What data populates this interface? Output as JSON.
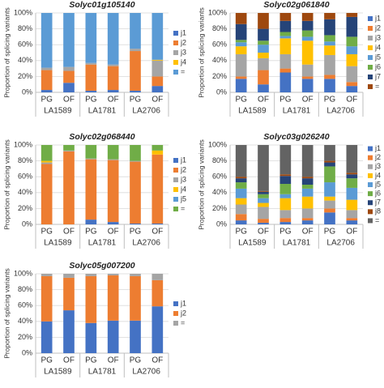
{
  "chart_data": [
    {
      "type": "stacked_bar",
      "title": "Solyc01g105140",
      "y_label": "Proportion of splicing variants",
      "categories": [
        "PG",
        "OF",
        "PG",
        "OF",
        "PG",
        "OF"
      ],
      "groups": [
        "LA1589",
        "LA1781",
        "LA2706"
      ],
      "ylim": [
        0,
        100
      ],
      "yticks": [
        {
          "value": 0,
          "label": "0%"
        },
        {
          "value": 20,
          "label": "20%"
        },
        {
          "value": 40,
          "label": "40%"
        },
        {
          "value": 60,
          "label": "60%"
        },
        {
          "value": 80,
          "label": "80%"
        },
        {
          "value": 100,
          "label": "100%"
        }
      ],
      "grid": true,
      "legend": "right",
      "series": [
        {
          "name": "j1",
          "color": "#4472c4",
          "values": [
            3,
            12,
            2,
            3,
            2,
            8
          ]
        },
        {
          "name": "j2",
          "color": "#ed7d31",
          "values": [
            25,
            15,
            33,
            30,
            50,
            12
          ]
        },
        {
          "name": "j3",
          "color": "#a5a5a5",
          "values": [
            3,
            5,
            2,
            2,
            3,
            20
          ]
        },
        {
          "name": "j4",
          "color": "#ffc000",
          "values": [
            0,
            0,
            0,
            0,
            0,
            1
          ]
        },
        {
          "name": "=",
          "color": "#5b9bd5",
          "values": [
            69,
            68,
            63,
            65,
            45,
            59
          ]
        }
      ]
    },
    {
      "type": "stacked_bar",
      "title": "Solyc02g061840",
      "y_label": "Proportion of splicing variants",
      "categories": [
        "PG",
        "OF",
        "PG",
        "OF",
        "PG",
        "OF"
      ],
      "groups": [
        "LA1589",
        "LA1781",
        "LA2706"
      ],
      "ylim": [
        0,
        100
      ],
      "yticks": [
        {
          "value": 0,
          "label": "0%"
        },
        {
          "value": 20,
          "label": "20%"
        },
        {
          "value": 40,
          "label": "40%"
        },
        {
          "value": 60,
          "label": "60%"
        },
        {
          "value": 80,
          "label": "80%"
        },
        {
          "value": 100,
          "label": "100%"
        }
      ],
      "grid": true,
      "legend": "right",
      "series": [
        {
          "name": "j1",
          "color": "#4472c4",
          "values": [
            17,
            10,
            25,
            17,
            17,
            8
          ]
        },
        {
          "name": "j2",
          "color": "#ed7d31",
          "values": [
            3,
            18,
            5,
            3,
            5,
            5
          ]
        },
        {
          "name": "j3",
          "color": "#a5a5a5",
          "values": [
            28,
            15,
            18,
            15,
            25,
            20
          ]
        },
        {
          "name": "j4",
          "color": "#ffc000",
          "values": [
            10,
            7,
            20,
            30,
            12,
            15
          ]
        },
        {
          "name": "j5",
          "color": "#5b9bd5",
          "values": [
            5,
            10,
            3,
            5,
            5,
            10
          ]
        },
        {
          "name": "j6",
          "color": "#70ad47",
          "values": [
            3,
            5,
            5,
            8,
            8,
            12
          ]
        },
        {
          "name": "j7",
          "color": "#264478",
          "values": [
            20,
            15,
            14,
            12,
            20,
            25
          ]
        },
        {
          "name": "=",
          "color": "#9e480e",
          "values": [
            14,
            20,
            10,
            10,
            8,
            5
          ]
        }
      ]
    },
    {
      "type": "stacked_bar",
      "title": "Solyc02g068440",
      "y_label": "Proportion of splicing variants",
      "categories": [
        "PG",
        "OF",
        "PG",
        "OF",
        "PG",
        "OF"
      ],
      "groups": [
        "LA1589",
        "LA1781",
        "LA2706"
      ],
      "ylim": [
        0,
        100
      ],
      "yticks": [
        {
          "value": 0,
          "label": "0%"
        },
        {
          "value": 20,
          "label": "20%"
        },
        {
          "value": 40,
          "label": "40%"
        },
        {
          "value": 60,
          "label": "60%"
        },
        {
          "value": 80,
          "label": "80%"
        },
        {
          "value": 100,
          "label": "100%"
        }
      ],
      "grid": true,
      "legend": "right",
      "series": [
        {
          "name": "j1",
          "color": "#4472c4",
          "values": [
            0,
            0,
            6,
            3,
            1,
            1
          ]
        },
        {
          "name": "j2",
          "color": "#ed7d31",
          "values": [
            76,
            92,
            76,
            78,
            78,
            87
          ]
        },
        {
          "name": "j3",
          "color": "#a5a5a5",
          "values": [
            2,
            1,
            1,
            1,
            1,
            0
          ]
        },
        {
          "name": "j4",
          "color": "#ffc000",
          "values": [
            2,
            0,
            0,
            0,
            0,
            5
          ]
        },
        {
          "name": "j5",
          "color": "#5b9bd5",
          "values": [
            0,
            0,
            0,
            0,
            0,
            0
          ]
        },
        {
          "name": "=",
          "color": "#70ad47",
          "values": [
            20,
            7,
            17,
            18,
            20,
            7
          ]
        }
      ]
    },
    {
      "type": "stacked_bar",
      "title": "Solyc03g026240",
      "y_label": "Proportion of splicing variants",
      "categories": [
        "PG",
        "OF",
        "PG",
        "OF",
        "PG",
        "OF"
      ],
      "groups": [
        "LA1589",
        "LA1781",
        "LA2706"
      ],
      "ylim": [
        0,
        100
      ],
      "yticks": [
        {
          "value": 0,
          "label": "0%"
        },
        {
          "value": 20,
          "label": "20%"
        },
        {
          "value": 40,
          "label": "40%"
        },
        {
          "value": 60,
          "label": "60%"
        },
        {
          "value": 80,
          "label": "80%"
        },
        {
          "value": 100,
          "label": "100%"
        }
      ],
      "grid": true,
      "legend": "right",
      "series": [
        {
          "name": "j1",
          "color": "#4472c4",
          "values": [
            5,
            2,
            3,
            5,
            15,
            5
          ]
        },
        {
          "name": "j2",
          "color": "#ed7d31",
          "values": [
            8,
            5,
            5,
            3,
            5,
            3
          ]
        },
        {
          "name": "j3",
          "color": "#a5a5a5",
          "values": [
            12,
            15,
            10,
            12,
            10,
            10
          ]
        },
        {
          "name": "j4",
          "color": "#ffc000",
          "values": [
            8,
            5,
            15,
            15,
            5,
            13
          ]
        },
        {
          "name": "j5",
          "color": "#5b9bd5",
          "values": [
            12,
            6,
            5,
            10,
            18,
            15
          ]
        },
        {
          "name": "j6",
          "color": "#70ad47",
          "values": [
            8,
            5,
            13,
            5,
            20,
            12
          ]
        },
        {
          "name": "j7",
          "color": "#264478",
          "values": [
            5,
            3,
            10,
            8,
            5,
            5
          ]
        },
        {
          "name": "j8",
          "color": "#9e480e",
          "values": [
            2,
            1,
            2,
            2,
            2,
            2
          ]
        },
        {
          "name": "=",
          "color": "#636363",
          "values": [
            40,
            58,
            37,
            40,
            20,
            35
          ]
        }
      ]
    },
    {
      "type": "stacked_bar",
      "title": "Solyc05g007200",
      "y_label": "Proportion of splicing variants",
      "categories": [
        "PG",
        "OF",
        "PG",
        "OF",
        "PG",
        "OF"
      ],
      "groups": [
        "LA1589",
        "LA1781",
        "LA2706"
      ],
      "ylim": [
        0,
        100
      ],
      "yticks": [
        {
          "value": 0,
          "label": "0%"
        },
        {
          "value": 20,
          "label": "20%"
        },
        {
          "value": 40,
          "label": "40%"
        },
        {
          "value": 60,
          "label": "60%"
        },
        {
          "value": 80,
          "label": "80%"
        },
        {
          "value": 100,
          "label": "100%"
        }
      ],
      "grid": true,
      "legend": "right",
      "series": [
        {
          "name": "j1",
          "color": "#4472c4",
          "values": [
            40,
            54,
            38,
            41,
            41,
            59
          ]
        },
        {
          "name": "j2",
          "color": "#ed7d31",
          "values": [
            57,
            41,
            59,
            57,
            56,
            33
          ]
        },
        {
          "name": "=",
          "color": "#a5a5a5",
          "values": [
            3,
            5,
            3,
            2,
            3,
            8
          ]
        }
      ]
    }
  ]
}
